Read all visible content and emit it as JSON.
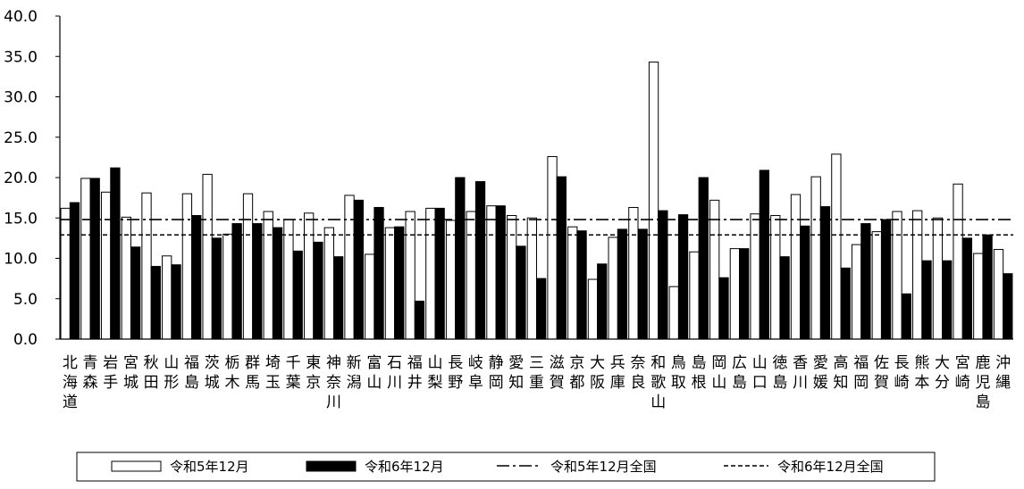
{
  "chart_data": {
    "type": "bar",
    "ylim": [
      0,
      40
    ],
    "yticks": [
      "0.0",
      "5.0",
      "10.0",
      "15.0",
      "20.0",
      "25.0",
      "30.0",
      "35.0",
      "40.0"
    ],
    "categories": [
      "北海道",
      "青森",
      "岩手",
      "宮城",
      "秋田",
      "山形",
      "福島",
      "茨城",
      "栃木",
      "群馬",
      "埼玉",
      "千葉",
      "東京",
      "神奈川",
      "新潟",
      "富山",
      "石川",
      "福井",
      "山梨",
      "長野",
      "岐阜",
      "静岡",
      "愛知",
      "三重",
      "滋賀",
      "京都",
      "大阪",
      "兵庫",
      "奈良",
      "和歌山",
      "鳥取",
      "島根",
      "岡山",
      "広島",
      "山口",
      "徳島",
      "香川",
      "愛媛",
      "高知",
      "福岡",
      "佐賀",
      "長崎",
      "熊本",
      "大分",
      "宮崎",
      "鹿児島",
      "沖縄"
    ],
    "series": [
      {
        "name": "令和5年12月",
        "color": "#ffffff",
        "values": [
          16.2,
          19.9,
          18.2,
          15.1,
          18.1,
          10.3,
          18.0,
          20.4,
          13.0,
          18.0,
          15.8,
          14.8,
          15.6,
          13.8,
          17.8,
          10.5,
          13.8,
          15.8,
          16.2,
          14.7,
          15.8,
          16.5,
          15.3,
          15.0,
          22.6,
          13.9,
          7.4,
          12.6,
          16.3,
          34.3,
          6.5,
          10.8,
          17.2,
          11.2,
          15.5,
          15.3,
          17.9,
          20.1,
          22.9,
          11.7,
          13.3,
          15.8,
          15.9,
          15.0,
          19.2,
          10.6,
          11.1
        ]
      },
      {
        "name": "令和6年12月",
        "color": "#000000",
        "values": [
          16.9,
          19.9,
          21.2,
          11.4,
          9.0,
          9.2,
          15.3,
          12.5,
          14.3,
          14.3,
          13.8,
          10.9,
          12.0,
          10.2,
          17.2,
          16.3,
          13.9,
          4.7,
          16.2,
          20.0,
          19.5,
          16.5,
          11.5,
          7.5,
          20.1,
          13.4,
          9.3,
          13.6,
          13.6,
          15.9,
          15.4,
          20.0,
          7.6,
          11.2,
          20.9,
          10.2,
          14.0,
          16.4,
          8.8,
          14.3,
          14.8,
          5.6,
          9.7,
          9.7,
          12.5,
          12.9,
          8.1
        ]
      }
    ],
    "reference_lines": [
      {
        "name": "令和5年12月全国",
        "value": 14.8,
        "style": "dash-dot"
      },
      {
        "name": "令和6年12月全国",
        "value": 12.9,
        "style": "dashed"
      }
    ],
    "legend_position": "bottom",
    "grid": false
  }
}
